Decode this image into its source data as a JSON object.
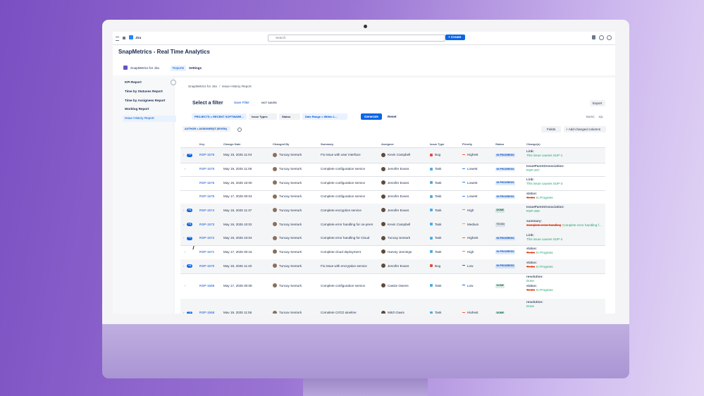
{
  "nav": {
    "app": "Jira",
    "search": "Search",
    "create": "+ Create"
  },
  "header": {
    "title": "SnapMetrics - Real Time Analytics"
  },
  "tabs": {
    "app": "SnapMetrics for Jira",
    "items": [
      "Reports",
      "Settings"
    ]
  },
  "sidebar": {
    "items": [
      "KPI Report",
      "Time by Statuses Report",
      "Time by Assignees Report",
      "Worklog Report",
      "Issue History Report"
    ]
  },
  "breadcrumb": {
    "items": [
      "SnapMetrics for Jira",
      "Issue History Report"
    ],
    "separator": "/"
  },
  "filter": {
    "title": "Select a filter",
    "save": "Save Filter",
    "state": "NOT SAVED",
    "export": "Export",
    "controls": [
      "PROJECTS = RECENT SOFTWARE...",
      "Issue Types",
      "Status",
      "Date Range = Within L..."
    ],
    "generate": "Generate",
    "reset": "Reset",
    "modes": [
      "BASIC",
      "JQL"
    ],
    "chip": "AUTHOR = ASSIGNEE(IT-SEVEN)",
    "fields": "Fields",
    "add_columns": "+ Add changed columns"
  },
  "table": {
    "columns": [
      "Key",
      "Change Date",
      "Changed By",
      "Summary",
      "Assignee",
      "Issue Type",
      "Priority",
      "Status",
      "Change(s)"
    ],
    "rows": [
      {
        "badge": "+2",
        "key": "RSP-1576",
        "date": "May 19, 2025 11:04",
        "changed_by": "Tuncay Senturk",
        "summary": "Fix issue with user interface",
        "assignee": "Kevin Campbell",
        "type": "Bug",
        "type_color": "#e5493a",
        "priority": "Highest",
        "priority_color": "#ff5630",
        "status": "IN PROGRESS",
        "status_color": "#0052cc",
        "changes": [
          {
            "field": "Link:",
            "new": "This issue causes SUP-1"
          }
        ]
      },
      {
        "key": "RSP-1575",
        "date": "May 19, 2025 11:06",
        "changed_by": "Tuncay Senturk",
        "summary": "Complete configuration service",
        "assignee": "Jennifer Evans",
        "type": "Task",
        "type_color": "#4bade8",
        "priority": "Lowest",
        "priority_color": "#2684ff",
        "status": "IN PROGRESS",
        "status_color": "#0052cc",
        "changes": [
          {
            "field": "IssueParentAssociation:",
            "new": "RSP-207"
          }
        ]
      },
      {
        "key": "RSP-1575",
        "date": "May 19, 2025 10:00",
        "changed_by": "Tuncay Senturk",
        "summary": "Complete configuration service",
        "assignee": "Jennifer Evans",
        "type": "Task",
        "type_color": "#4bade8",
        "priority": "Lowest",
        "priority_color": "#2684ff",
        "status": "IN PROGRESS",
        "status_color": "#0052cc",
        "changes": [
          {
            "field": "Link:",
            "new": "This issue causes SUP-3"
          }
        ]
      },
      {
        "key": "RSP-1575",
        "date": "May 17, 2025 00:04",
        "changed_by": "Tuncay Senturk",
        "summary": "Complete configuration service",
        "assignee": "Jennifer Evans",
        "type": "Task",
        "type_color": "#4bade8",
        "priority": "Lowest",
        "priority_color": "#2684ff",
        "status": "IN PROGRESS",
        "status_color": "#0052cc",
        "changes": [
          {
            "field": "status:",
            "old": "To Do",
            "new": "In Progress"
          }
        ]
      },
      {
        "badge": "+1",
        "key": "RSP-1574",
        "date": "May 19, 2025 11:37",
        "changed_by": "Tuncay Senturk",
        "summary": "Complete encryption service",
        "assignee": "Jennifer Evans",
        "type": "Task",
        "type_color": "#4bade8",
        "priority": "High",
        "priority_color": "#ff7452",
        "status": "DONE",
        "status_color": "#006644",
        "changes": [
          {
            "field": "IssueParentAssociation:",
            "new": "RSP-269"
          }
        ]
      },
      {
        "badge": "+1",
        "key": "RSP-1573",
        "date": "May 19, 2025 10:02",
        "changed_by": "Tuncay Senturk",
        "summary": "Complete error handling for on-prem",
        "assignee": "Kevin Campbell",
        "type": "Task",
        "type_color": "#4bade8",
        "priority": "Medium",
        "priority_color": "#ffab00",
        "status": "TO DO",
        "status_color": "#42526e",
        "changes": [
          {
            "field": "summary:",
            "old": "Complete error handling",
            "new": "Complete error handling f..."
          }
        ]
      },
      {
        "badge": "+2",
        "key": "RSP-1572",
        "date": "May 19, 2025 10:04",
        "changed_by": "Tuncay Senturk",
        "summary": "Complete error handling for Cloud",
        "assignee": "Tuncay Senturk",
        "type": "Task",
        "type_color": "#4bade8",
        "priority": "Highest",
        "priority_color": "#ff5630",
        "status": "IN PROGRESS",
        "status_color": "#0052cc",
        "changes": [
          {
            "field": "Link:",
            "new": "This issue causes SUP-2"
          }
        ]
      },
      {
        "key": "RSP-1571",
        "date": "May 17, 2025 00:16",
        "changed_by": "Tuncay Senturk",
        "summary": "Complete cloud deployment",
        "assignee": "Harvey Jennings",
        "type": "Task",
        "type_color": "#4bade8",
        "priority": "High",
        "priority_color": "#ff7452",
        "status": "IN PROGRESS",
        "status_color": "#0052cc",
        "changes": [
          {
            "field": "status:",
            "old": "To Do",
            "new": "In Progress"
          }
        ]
      },
      {
        "badge": "+3",
        "key": "RSP-1570",
        "date": "May 19, 2025 11:40",
        "changed_by": "Tuncay Senturk",
        "summary": "Fix issue with encryption service",
        "assignee": "Jennifer Evans",
        "type": "Bug",
        "type_color": "#e5493a",
        "priority": "Low",
        "priority_color": "#0065ff",
        "status": "IN PROGRESS",
        "status_color": "#0052cc",
        "changes": [
          {
            "field": "status:",
            "old": "To Do",
            "new": "In Progress"
          }
        ]
      },
      {
        "key": "RSP-1569",
        "date": "May 17, 2025 00:08",
        "changed_by": "Tuncay Senturk",
        "summary": "Complete configuration service",
        "assignee": "Cassie Owens",
        "type": "Task",
        "type_color": "#4bade8",
        "priority": "Low",
        "priority_color": "#0065ff",
        "status": "DONE",
        "status_color": "#006644",
        "changes": [
          {
            "field": "resolution:",
            "new": "Done"
          },
          {
            "field": "status:",
            "old": "To Do",
            "new": "In Progress"
          }
        ]
      },
      {
        "badge": "+2",
        "key": "RSP-1568",
        "date": "May 19, 2025 11:55",
        "changed_by": "Tuncay Senturk",
        "summary": "Complete CI/CD pipeline",
        "assignee": "Mitch Davis",
        "type": "Task",
        "type_color": "#4bade8",
        "priority": "Highest",
        "priority_color": "#ff5630",
        "status": "DONE",
        "status_color": "#006644",
        "changes": [
          {
            "field": "resolution:",
            "new": "Done"
          }
        ]
      }
    ]
  }
}
